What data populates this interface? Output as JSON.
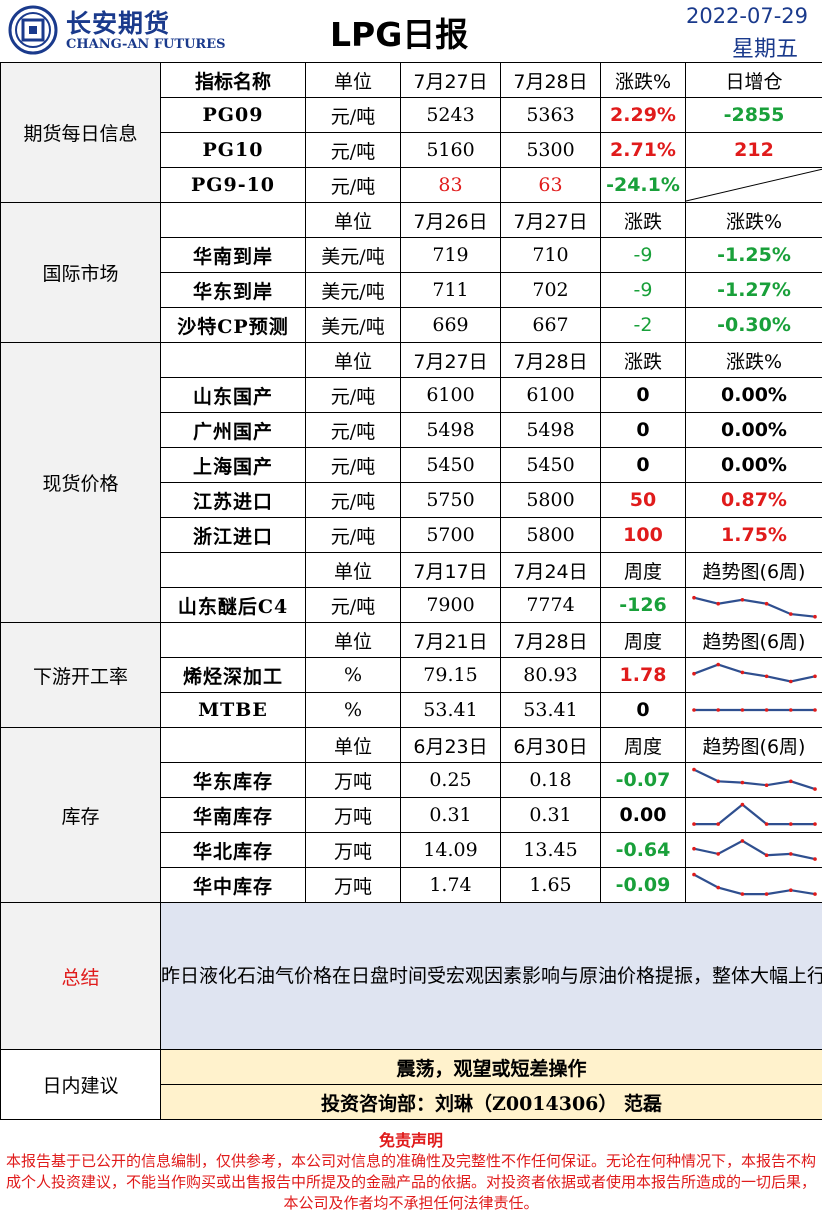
{
  "header": {
    "logo_cn": "长安期货",
    "logo_en": "CHANG-AN FUTURES",
    "title": "LPG日报",
    "date": "2022-07-29",
    "weekday": "星期五"
  },
  "futures": {
    "section": "期货每日信息",
    "headers": [
      "指标名称",
      "单位",
      "7月27日",
      "7月28日",
      "涨跌%",
      "日增仓"
    ],
    "rows": [
      {
        "name": "PG09",
        "unit": "元/吨",
        "v1": "5243",
        "v2": "5363",
        "chg": "2.29%",
        "oi": "-2855"
      },
      {
        "name": "PG10",
        "unit": "元/吨",
        "v1": "5160",
        "v2": "5300",
        "chg": "2.71%",
        "oi": "212"
      },
      {
        "name": "PG9-10",
        "unit": "元/吨",
        "v1": "83",
        "v2": "63",
        "chg": "-24.1%",
        "oi": ""
      }
    ]
  },
  "intl": {
    "section": "国际市场",
    "headers": [
      "单位",
      "7月26日",
      "7月27日",
      "涨跌",
      "涨跌%"
    ],
    "rows": [
      {
        "name": "华南到岸",
        "unit": "美元/吨",
        "v1": "719",
        "v2": "710",
        "chg": "-9",
        "pct": "-1.25%"
      },
      {
        "name": "华东到岸",
        "unit": "美元/吨",
        "v1": "711",
        "v2": "702",
        "chg": "-9",
        "pct": "-1.27%"
      },
      {
        "name": "沙特CP预测",
        "unit": "美元/吨",
        "v1": "669",
        "v2": "667",
        "chg": "-2",
        "pct": "-0.30%"
      }
    ]
  },
  "spot": {
    "section": "现货价格",
    "headers": [
      "单位",
      "7月27日",
      "7月28日",
      "涨跌",
      "涨跌%"
    ],
    "rows": [
      {
        "name": "山东国产",
        "unit": "元/吨",
        "v1": "6100",
        "v2": "6100",
        "chg": "0",
        "pct": "0.00%"
      },
      {
        "name": "广州国产",
        "unit": "元/吨",
        "v1": "5498",
        "v2": "5498",
        "chg": "0",
        "pct": "0.00%"
      },
      {
        "name": "上海国产",
        "unit": "元/吨",
        "v1": "5450",
        "v2": "5450",
        "chg": "0",
        "pct": "0.00%"
      },
      {
        "name": "江苏进口",
        "unit": "元/吨",
        "v1": "5750",
        "v2": "5800",
        "chg": "50",
        "pct": "0.87%"
      },
      {
        "name": "浙江进口",
        "unit": "元/吨",
        "v1": "5700",
        "v2": "5800",
        "chg": "100",
        "pct": "1.75%"
      }
    ],
    "headers2": [
      "单位",
      "7月17日",
      "7月24日",
      "周度",
      "趋势图(6周)"
    ],
    "c4": {
      "name": "山东醚后C4",
      "unit": "元/吨",
      "v1": "7900",
      "v2": "7774",
      "chg": "-126"
    }
  },
  "downstream": {
    "section": "下游开工率",
    "headers": [
      "单位",
      "7月21日",
      "7月28日",
      "周度",
      "趋势图(6周)"
    ],
    "rows": [
      {
        "name": "烯烃深加工",
        "unit": "%",
        "v1": "79.15",
        "v2": "80.93",
        "chg": "1.78"
      },
      {
        "name": "MTBE",
        "unit": "%",
        "v1": "53.41",
        "v2": "53.41",
        "chg": "0"
      }
    ]
  },
  "inventory": {
    "section": "库存",
    "headers": [
      "单位",
      "6月23日",
      "6月30日",
      "周度",
      "趋势图(6周)"
    ],
    "rows": [
      {
        "name": "华东库存",
        "unit": "万吨",
        "v1": "0.25",
        "v2": "0.18",
        "chg": "-0.07"
      },
      {
        "name": "华南库存",
        "unit": "万吨",
        "v1": "0.31",
        "v2": "0.31",
        "chg": "0.00"
      },
      {
        "name": "华北库存",
        "unit": "万吨",
        "v1": "14.09",
        "v2": "13.45",
        "chg": "-0.64"
      },
      {
        "name": "华中库存",
        "unit": "万吨",
        "v1": "1.74",
        "v2": "1.65",
        "chg": "-0.09"
      }
    ]
  },
  "sparklines": {
    "c4": [
      0.78,
      0.55,
      0.7,
      0.55,
      0.15,
      0.05
    ],
    "olefin": [
      0.55,
      0.9,
      0.6,
      0.45,
      0.25,
      0.45
    ],
    "mtbe": [
      0.5,
      0.5,
      0.5,
      0.5,
      0.5,
      0.5
    ],
    "huadong": [
      0.9,
      0.45,
      0.4,
      0.3,
      0.45,
      0.15
    ],
    "huanan": [
      0.15,
      0.15,
      0.9,
      0.15,
      0.15,
      0.15
    ],
    "huabei": [
      0.55,
      0.35,
      0.85,
      0.3,
      0.35,
      0.15
    ],
    "huazhong": [
      0.9,
      0.4,
      0.15,
      0.15,
      0.3,
      0.15
    ]
  },
  "summary": {
    "label": "总结",
    "text": "昨日液化石油气价格在日盘时间受宏观因素影响与原油价格提振，整体大幅上行，但在夜盘时间段重新单边跟随原油，价格小幅回落。目前看来，国际市场上液化气到岸价虽有所下调，但进口成本仍高，国内供给偏弱；而国内市场上下游开工基本持稳，民用需求虽季节波动处于弱势，国内需求同样偏弱。整体看来，液化石油气近期基本面将持续维持相对较弱的形势，价格上基本以单边跟随原油为主，日内或呈现宽幅震荡的走势。"
  },
  "advice": {
    "label": "日内建议",
    "text": "震荡，观望或短差操作",
    "advisor": "投资咨询部：刘琳（Z0014306） 范磊"
  },
  "disclaimer": {
    "title": "免责声明",
    "text": "本报告基于已公开的信息编制，仅供参考，本公司对信息的准确性及完整性不作任何保证。无论在何种情况下，本报告不构成个人投资建议，不能当作购买或出售报告中所提及的金融产品的依据。对投资者依据或者使用本报告所造成的一切后果，本公司及作者均不承担任何法律责任。"
  },
  "colors": {
    "brand_blue": "#1a3a8c",
    "up_red": "#e01b1b",
    "down_green": "#19a03a",
    "summary_bg": "#dfe4f1",
    "advice_bg": "#fff2cc",
    "spark_line": "#2f4f8f",
    "spark_point": "#e01b1b"
  }
}
